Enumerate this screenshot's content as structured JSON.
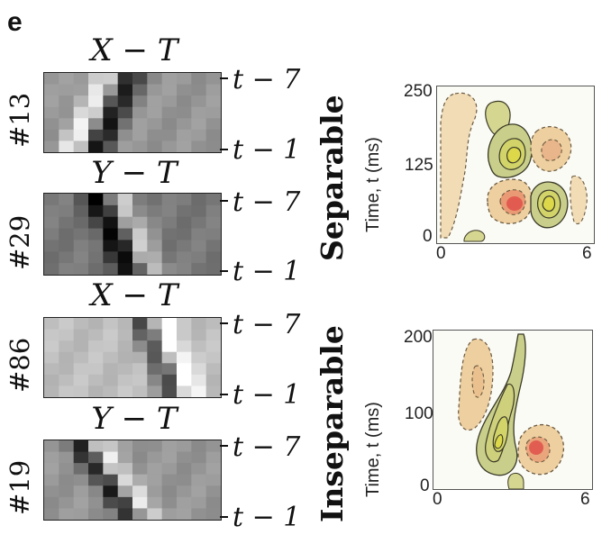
{
  "panel_label": "e",
  "unit_panels": [
    {
      "id": "#13",
      "plane": "X − T",
      "t_top": "t − 7",
      "t_bottom": "t − 1"
    },
    {
      "id": "#29",
      "plane": "Y − T",
      "t_top": "t − 7",
      "t_bottom": "t − 1"
    },
    {
      "id": "#86",
      "plane": "X − T",
      "t_top": "t − 7",
      "t_bottom": "t − 1"
    },
    {
      "id": "#19",
      "plane": "Y − T",
      "t_top": "t − 7",
      "t_bottom": "t − 1"
    }
  ],
  "receptive_fields": [
    {
      "label": "Separable",
      "y_title": "Time, t (ms)",
      "y_ticks": [
        "250",
        "125",
        "0"
      ],
      "x_ticks": [
        "0",
        "6"
      ]
    },
    {
      "label": "Inseparable",
      "y_title": "Time, t (ms)",
      "y_ticks": [
        "200",
        "100",
        "0"
      ],
      "x_ticks": [
        "0",
        "6"
      ]
    }
  ],
  "colors": {
    "background": "#ffffff",
    "on_lobe": "#c9cf8a",
    "on_core": "#d6d64a",
    "off_lobe": "#edcfa0",
    "off_core": "#e0504a",
    "contour": "#3a3a28"
  }
}
